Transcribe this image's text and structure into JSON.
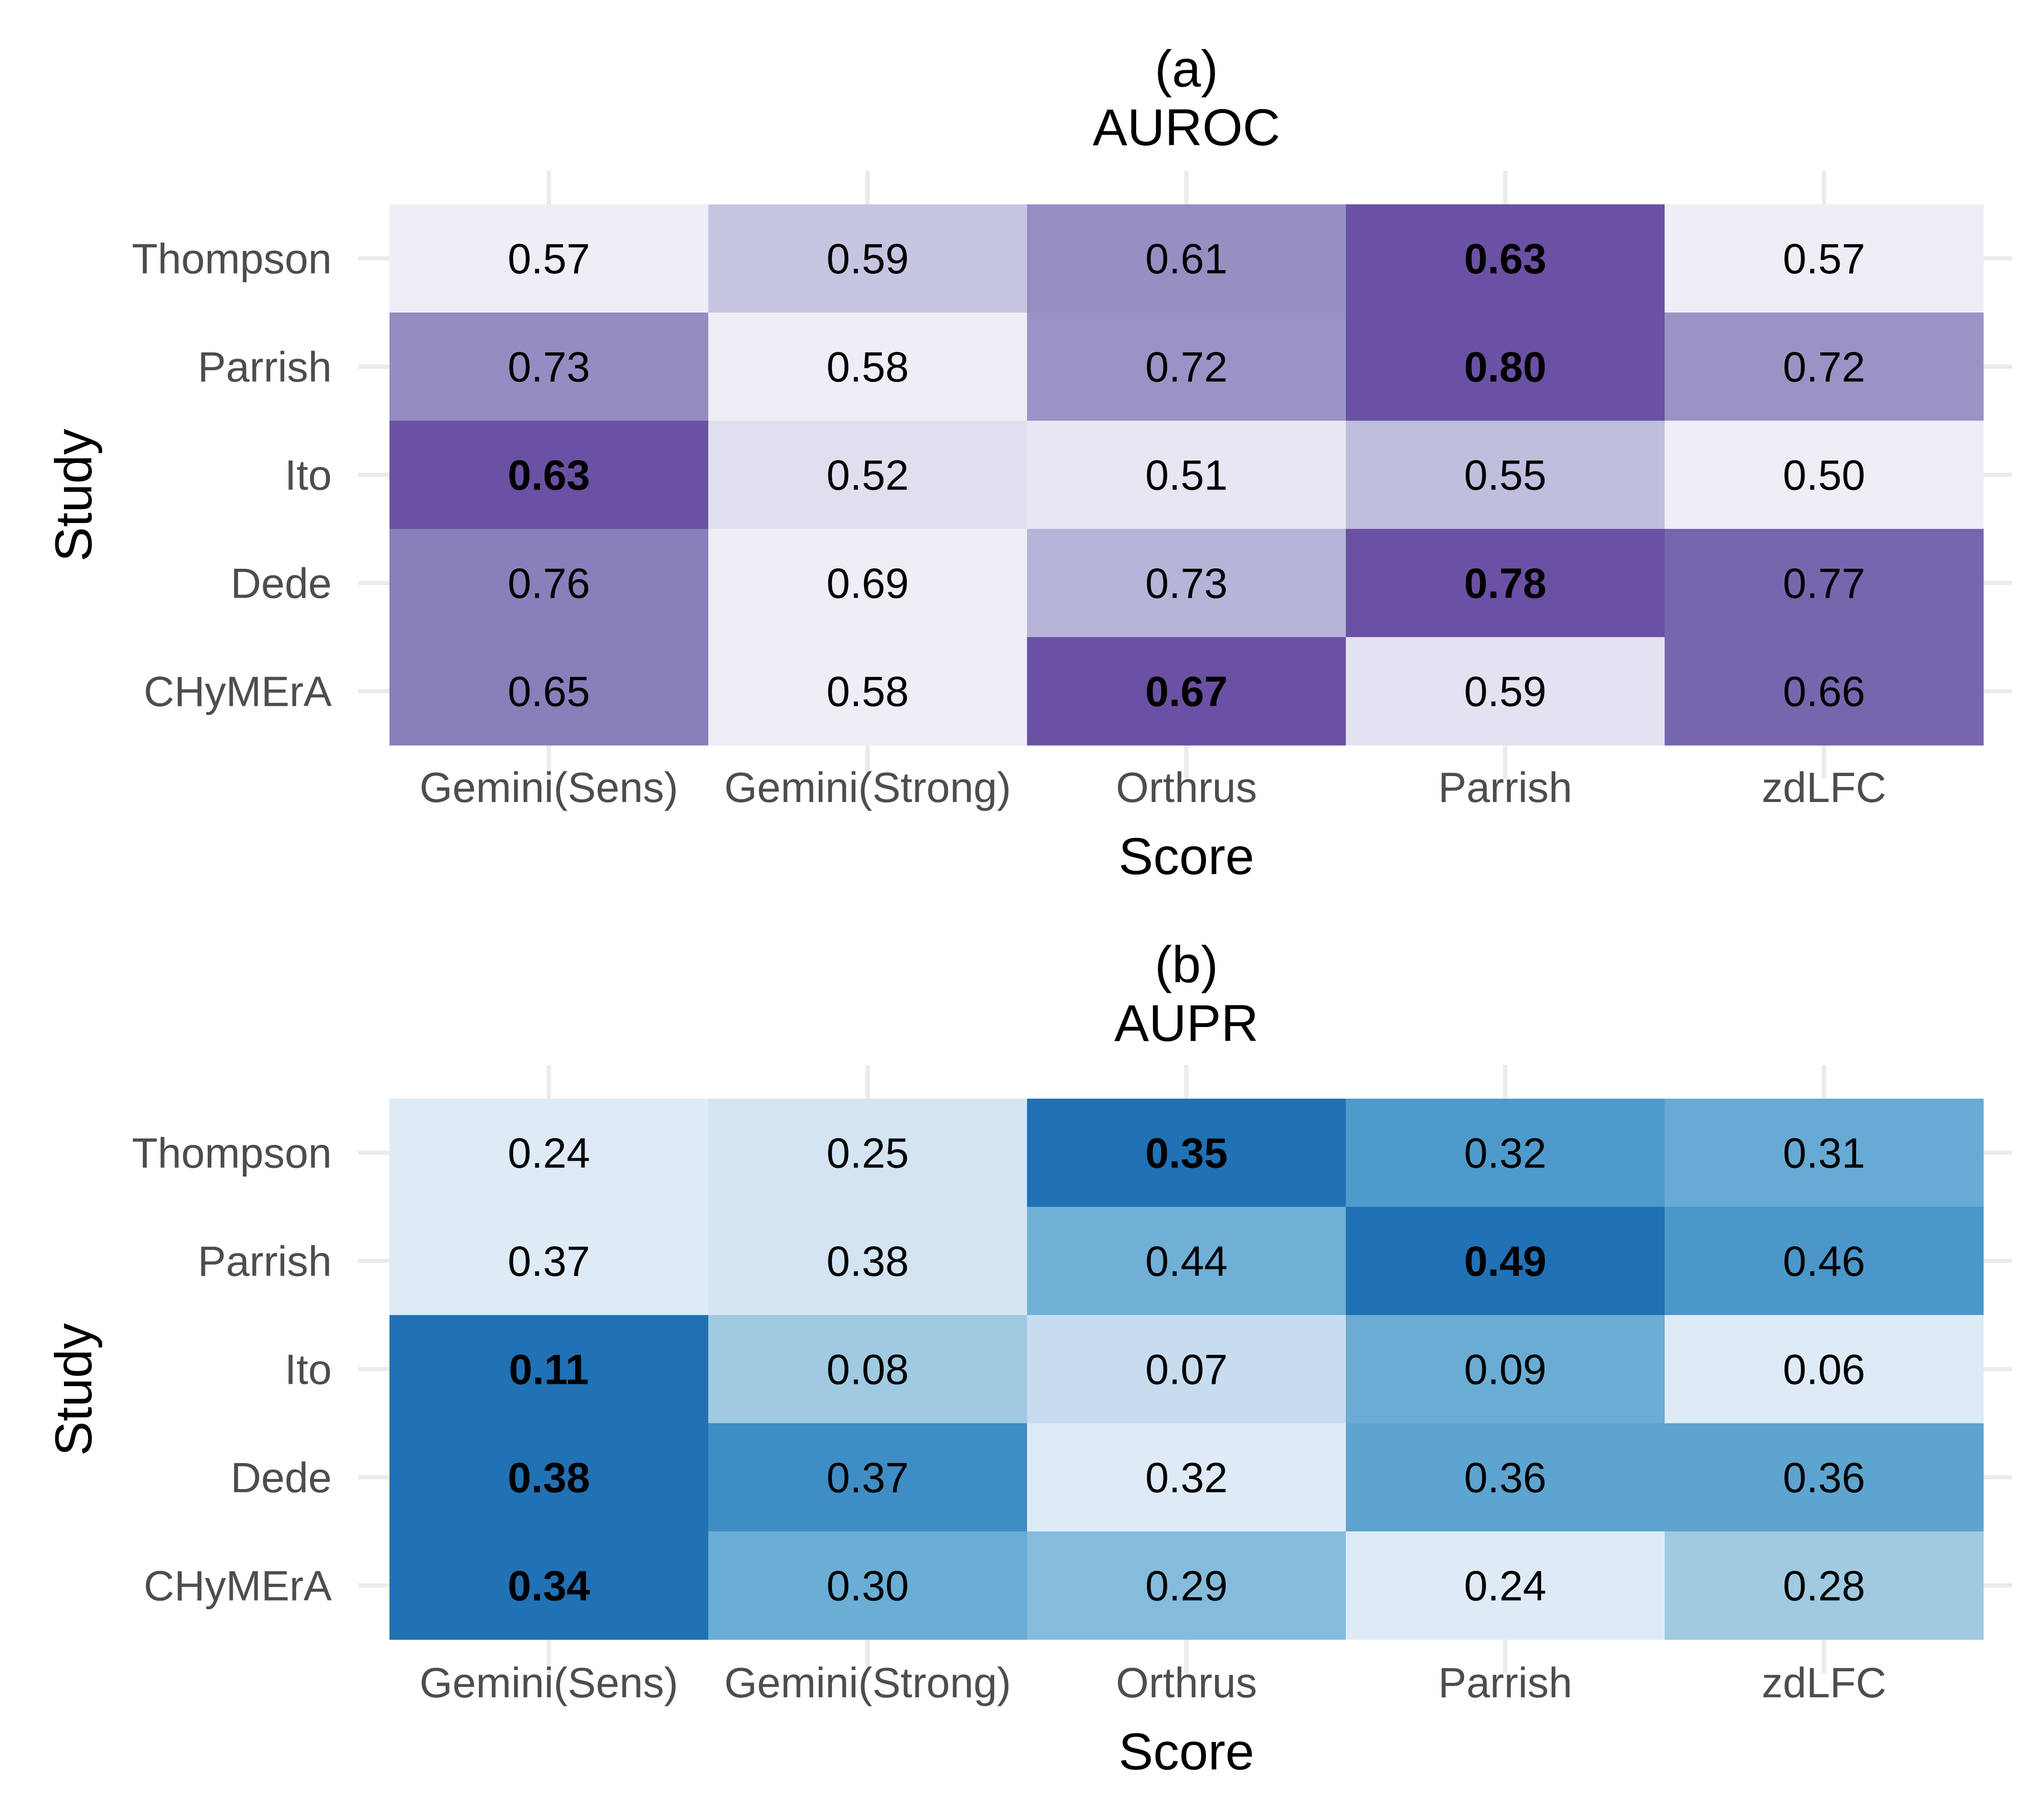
{
  "chart_data": [
    {
      "type": "heatmap",
      "title": "(a)",
      "subtitle": "AUROC",
      "xlabel": "Score",
      "ylabel": "Study",
      "x_categories": [
        "Gemini(Sens)",
        "Gemini(Strong)",
        "Orthrus",
        "Parrish",
        "zdLFC"
      ],
      "y_categories": [
        "Thompson",
        "Parrish",
        "Ito",
        "Dede",
        "CHyMErA"
      ],
      "values": [
        [
          "0.57",
          "0.59",
          "0.61",
          "0.63",
          "0.57"
        ],
        [
          "0.73",
          "0.58",
          "0.72",
          "0.80",
          "0.72"
        ],
        [
          "0.63",
          "0.52",
          "0.51",
          "0.55",
          "0.50"
        ],
        [
          "0.76",
          "0.69",
          "0.73",
          "0.78",
          "0.77"
        ],
        [
          "0.65",
          "0.58",
          "0.67",
          "0.59",
          "0.66"
        ]
      ],
      "bold": [
        [
          false,
          false,
          false,
          true,
          false
        ],
        [
          false,
          false,
          false,
          true,
          false
        ],
        [
          true,
          false,
          false,
          false,
          false
        ],
        [
          false,
          false,
          false,
          true,
          false
        ],
        [
          false,
          false,
          true,
          false,
          false
        ]
      ],
      "cell_colors": [
        [
          "#efedf5",
          "#c6c5e1",
          "#958fc2",
          "#6a51a3",
          "#efedf5"
        ],
        [
          "#938dc1",
          "#efedf5",
          "#9994c5",
          "#6a51a3",
          "#9994c5"
        ],
        [
          "#6a51a3",
          "#e0dfee",
          "#e8e6f2",
          "#bfbedd",
          "#efedf5"
        ],
        [
          "#8780bb",
          "#efedf5",
          "#b6b4d8",
          "#6a51a3",
          "#7666ae"
        ],
        [
          "#8780bb",
          "#efedf5",
          "#6a51a3",
          "#e3e2f0",
          "#7666ae"
        ]
      ],
      "grid": true
    },
    {
      "type": "heatmap",
      "title": "(b)",
      "subtitle": "AUPR",
      "xlabel": "Score",
      "ylabel": "Study",
      "x_categories": [
        "Gemini(Sens)",
        "Gemini(Strong)",
        "Orthrus",
        "Parrish",
        "zdLFC"
      ],
      "y_categories": [
        "Thompson",
        "Parrish",
        "Ito",
        "Dede",
        "CHyMErA"
      ],
      "values": [
        [
          "0.24",
          "0.25",
          "0.35",
          "0.32",
          "0.31"
        ],
        [
          "0.37",
          "0.38",
          "0.44",
          "0.49",
          "0.46"
        ],
        [
          "0.11",
          "0.08",
          "0.07",
          "0.09",
          "0.06"
        ],
        [
          "0.38",
          "0.37",
          "0.32",
          "0.36",
          "0.36"
        ],
        [
          "0.34",
          "0.30",
          "0.29",
          "0.24",
          "0.28"
        ]
      ],
      "bold": [
        [
          false,
          false,
          true,
          false,
          false
        ],
        [
          false,
          false,
          false,
          true,
          false
        ],
        [
          true,
          false,
          false,
          false,
          false
        ],
        [
          true,
          false,
          false,
          false,
          false
        ],
        [
          true,
          false,
          false,
          false,
          false
        ]
      ],
      "cell_colors": [
        [
          "#deebf7",
          "#d4e4f3",
          "#2171b5",
          "#4f9acc",
          "#67aad3"
        ],
        [
          "#deebf7",
          "#d4e4f3",
          "#70afd6",
          "#2171b5",
          "#4a97ca"
        ],
        [
          "#2171b5",
          "#9fcae1",
          "#c7dcef",
          "#6aacd4",
          "#deebf7"
        ],
        [
          "#2171b5",
          "#3e8dc5",
          "#deebf7",
          "#5ea4d0",
          "#5ea4d0"
        ],
        [
          "#2171b5",
          "#6aaed6",
          "#85bcdc",
          "#deebf7",
          "#9fcae1"
        ]
      ],
      "grid": true
    }
  ]
}
